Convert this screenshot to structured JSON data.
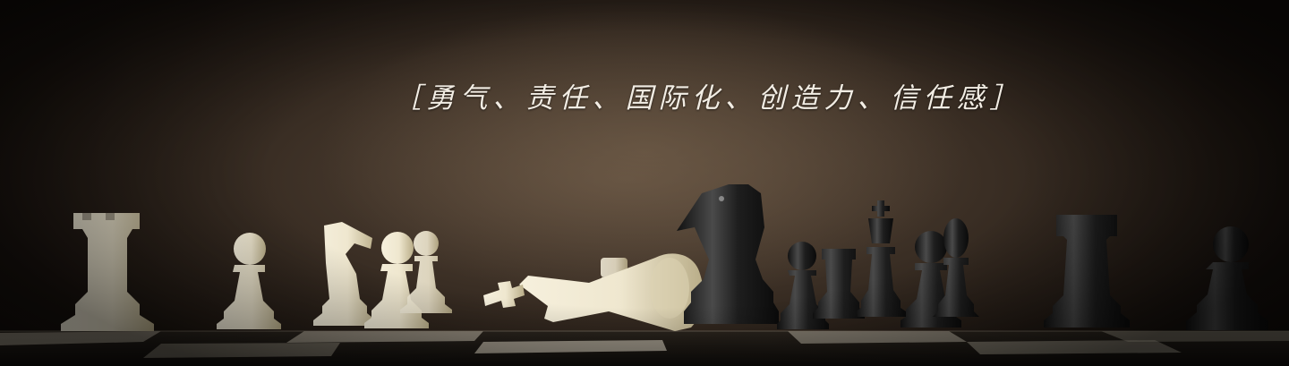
{
  "banner": {
    "slogan": "［勇气、责任、国际化、创造力、信任感］"
  },
  "colors": {
    "white_piece": "#efe7cf",
    "white_piece_shade": "#c9bd98",
    "black_piece": "#1b1b1b",
    "black_piece_highlight": "#4a4a4a"
  }
}
